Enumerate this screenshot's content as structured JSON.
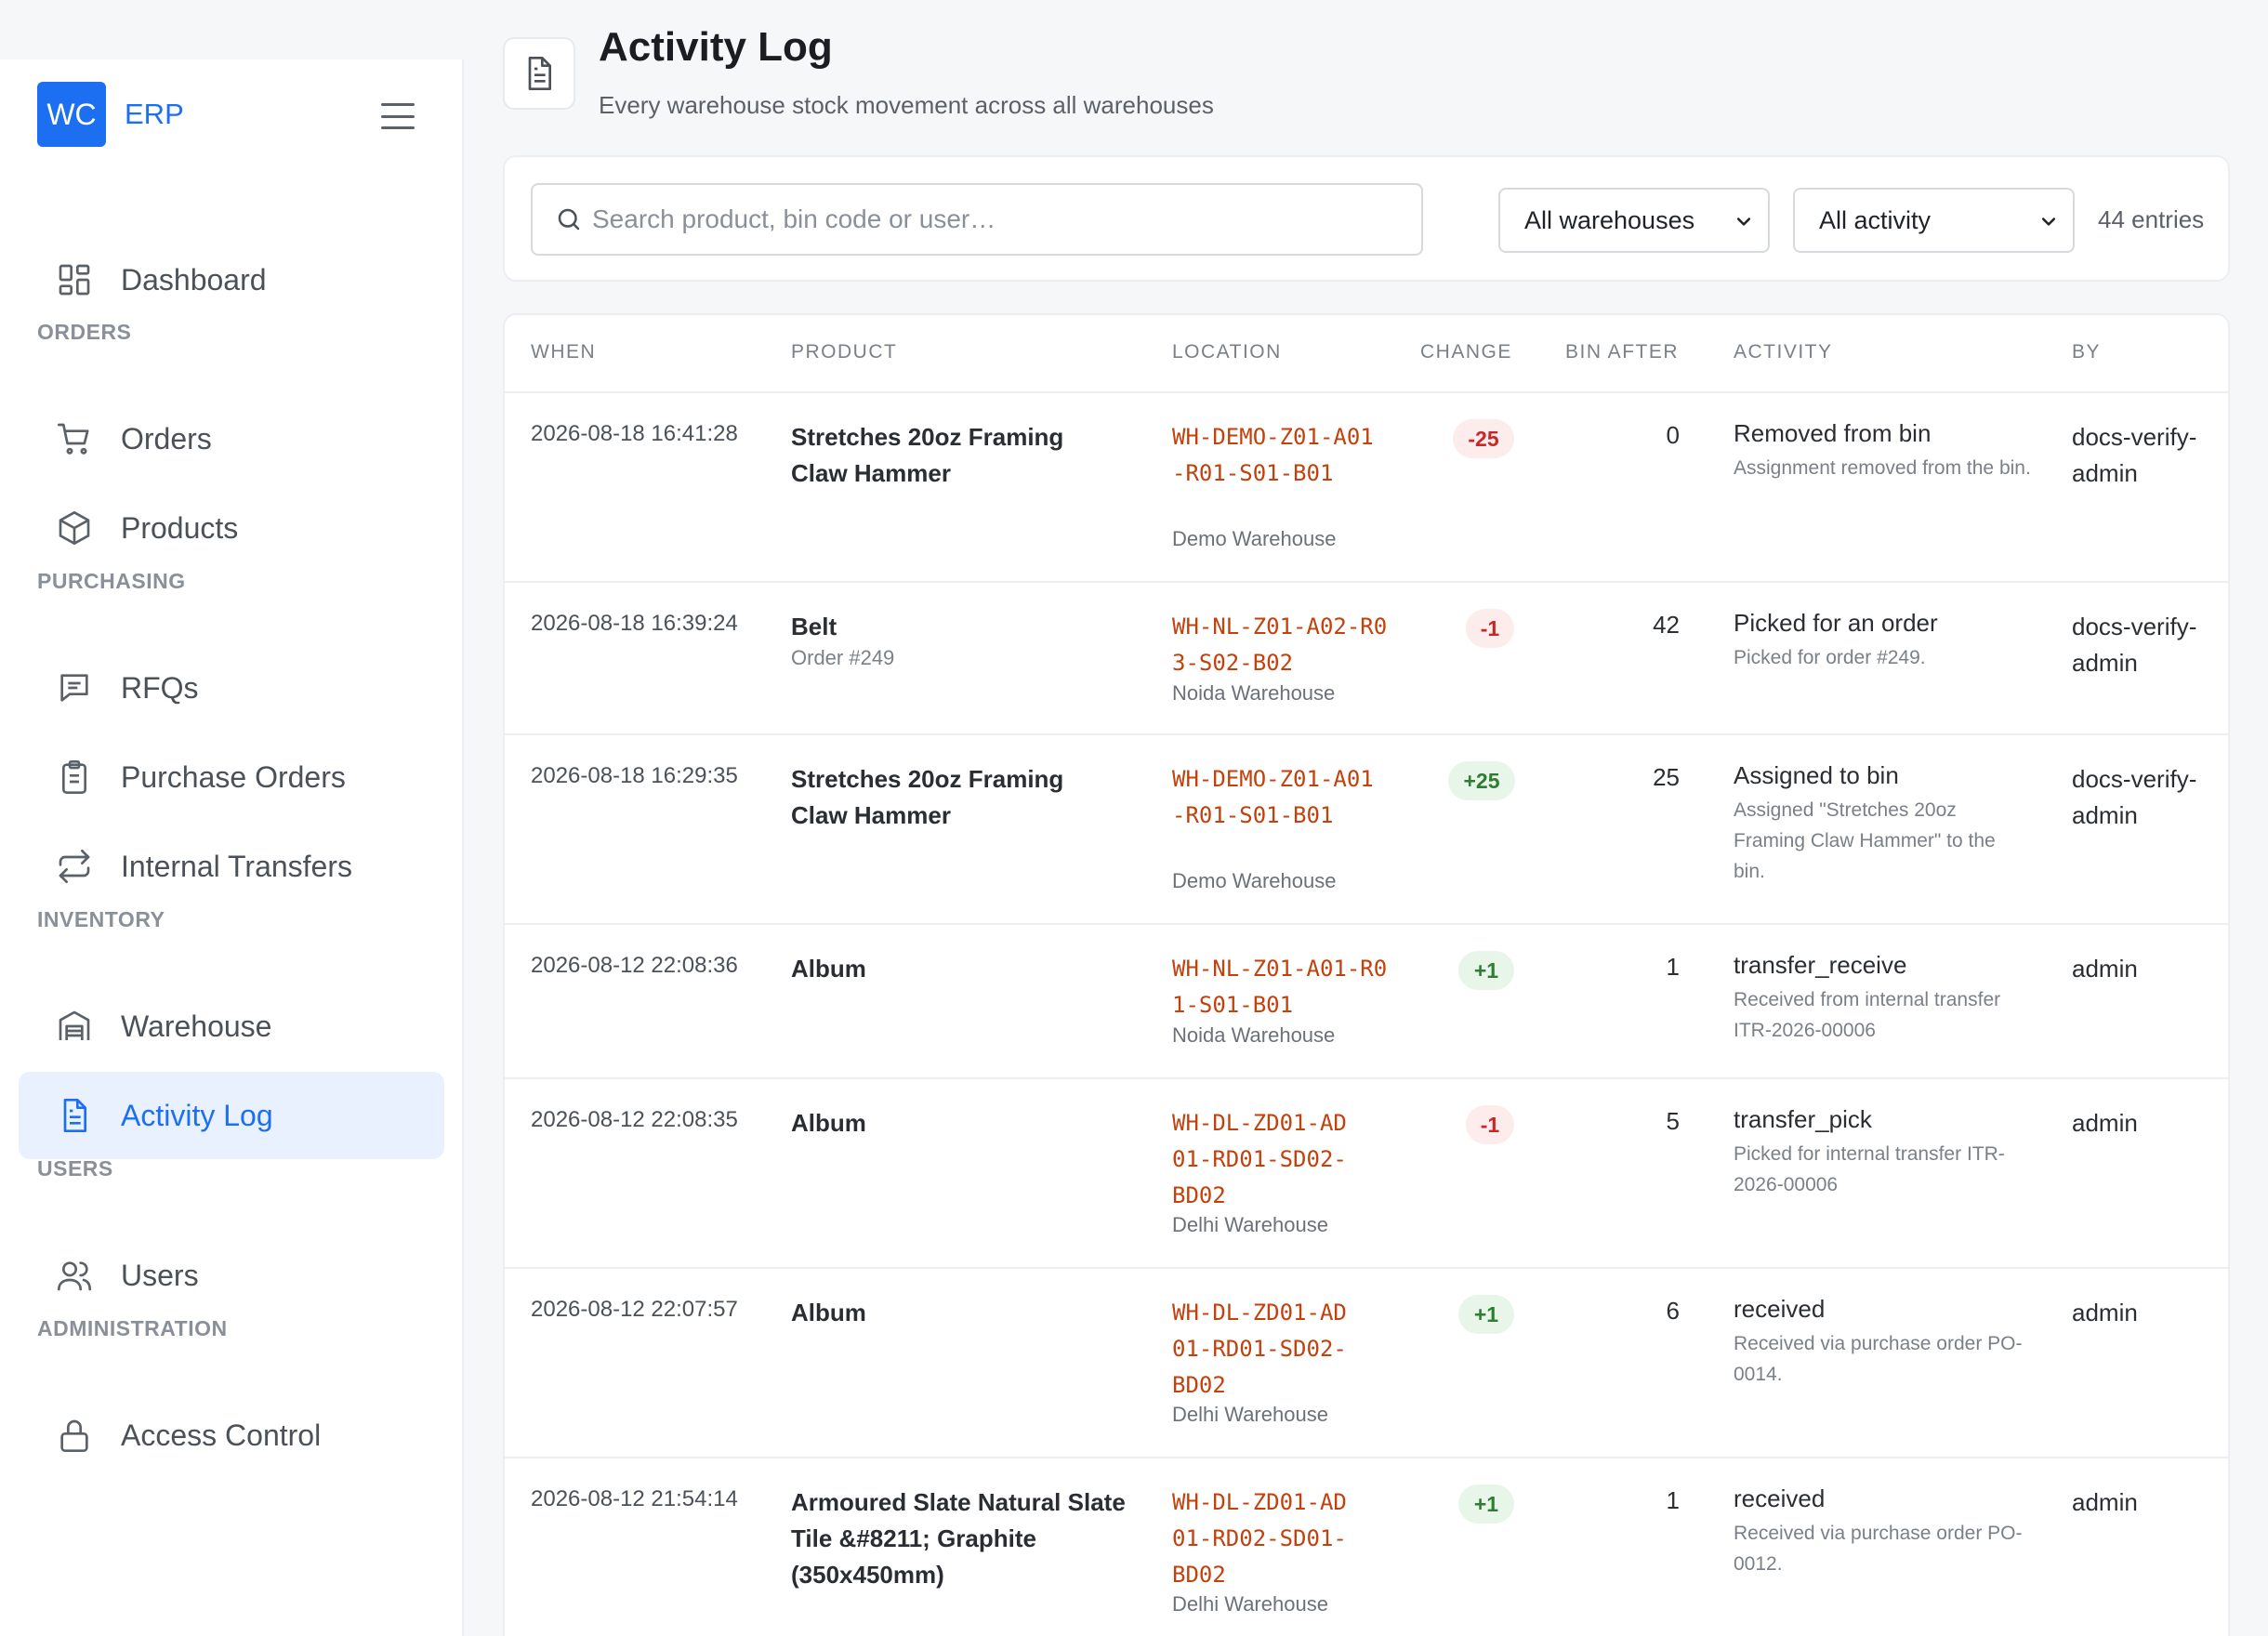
{
  "brand": {
    "logo": "WC",
    "name": "ERP"
  },
  "sidebar": {
    "dashboard": "Dashboard",
    "sections": [
      "ORDERS",
      "PURCHASING",
      "INVENTORY",
      "USERS",
      "ADMINISTRATION"
    ],
    "items": {
      "orders": "Orders",
      "products": "Products",
      "rfqs": "RFQs",
      "purchase_orders": "Purchase Orders",
      "internal_transfers": "Internal Transfers",
      "warehouse": "Warehouse",
      "activity_log": "Activity Log",
      "users": "Users",
      "access_control": "Access Control"
    },
    "active": "activity_log"
  },
  "header": {
    "title": "Activity Log",
    "subtitle": "Every warehouse stock movement across all warehouses"
  },
  "filters": {
    "search_placeholder": "Search product, bin code or user…",
    "warehouse": "All warehouses",
    "activity": "All activity",
    "entries": "44 entries"
  },
  "table": {
    "headers": [
      "WHEN",
      "PRODUCT",
      "LOCATION",
      "CHANGE",
      "BIN AFTER",
      "ACTIVITY",
      "BY"
    ],
    "rows": [
      {
        "when": "2026-08-18 16:41:28",
        "product": "Stretches 20oz Framing Claw Hammer",
        "product_sub": "",
        "location": "WH-DEMO-Z01-A01-R01-S01-B01",
        "warehouse": "Demo Warehouse",
        "change": "-25",
        "bin_after": "0",
        "activity": "Removed from bin",
        "activity_sub": "Assignment removed from the bin.",
        "by": "docs-verify-admin"
      },
      {
        "when": "2026-08-18 16:39:24",
        "product": "Belt",
        "product_sub": "Order #249",
        "location": "WH-NL-Z01-A02-R03-S02-B02",
        "warehouse": "Noida Warehouse",
        "change": "-1",
        "bin_after": "42",
        "activity": "Picked for an order",
        "activity_sub": "Picked for order #249.",
        "by": "docs-verify-admin"
      },
      {
        "when": "2026-08-18 16:29:35",
        "product": "Stretches 20oz Framing Claw Hammer",
        "product_sub": "",
        "location": "WH-DEMO-Z01-A01-R01-S01-B01",
        "warehouse": "Demo Warehouse",
        "change": "+25",
        "bin_after": "25",
        "activity": "Assigned to bin",
        "activity_sub": "Assigned \"Stretches 20oz Framing Claw Hammer\" to the bin.",
        "by": "docs-verify-admin"
      },
      {
        "when": "2026-08-12 22:08:36",
        "product": "Album",
        "product_sub": "",
        "location": "WH-NL-Z01-A01-R01-S01-B01",
        "warehouse": "Noida Warehouse",
        "change": "+1",
        "bin_after": "1",
        "activity": "transfer_receive",
        "activity_sub": "Received from internal transfer ITR-2026-00006",
        "by": "admin"
      },
      {
        "when": "2026-08-12 22:08:35",
        "product": "Album",
        "product_sub": "",
        "location": "WH-DL-ZD01-AD01-RD01-SD02-BD02",
        "warehouse": "Delhi Warehouse",
        "change": "-1",
        "bin_after": "5",
        "activity": "transfer_pick",
        "activity_sub": "Picked for internal transfer ITR-2026-00006",
        "by": "admin"
      },
      {
        "when": "2026-08-12 22:07:57",
        "product": "Album",
        "product_sub": "",
        "location": "WH-DL-ZD01-AD01-RD01-SD02-BD02",
        "warehouse": "Delhi Warehouse",
        "change": "+1",
        "bin_after": "6",
        "activity": "received",
        "activity_sub": "Received via purchase order PO-0014.",
        "by": "admin"
      },
      {
        "when": "2026-08-12 21:54:14",
        "product": "Armoured Slate Natural Slate Tile &#8211; Graphite (350x450mm)",
        "product_sub": "",
        "location": "WH-DL-ZD01-AD01-RD02-SD01-BD02",
        "warehouse": "Delhi Warehouse",
        "change": "+1",
        "bin_after": "1",
        "activity": "received",
        "activity_sub": "Received via purchase order PO-0012.",
        "by": "admin"
      }
    ]
  }
}
